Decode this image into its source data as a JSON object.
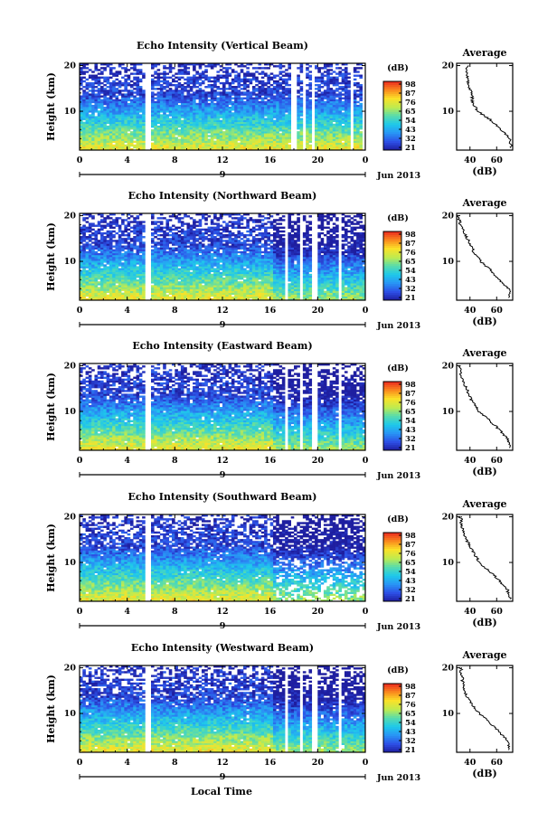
{
  "figure": {
    "xlabel": "Local Time",
    "date_label": "Jun 2013",
    "day_label": "9"
  },
  "chart_data": [
    {
      "type": "heatmap",
      "title": "Echo Intensity (Vertical Beam)",
      "ylabel": "Height (km)",
      "xlabel": "Local Time",
      "x_ticks": [
        "0",
        "4",
        "8",
        "12",
        "16",
        "20",
        "0"
      ],
      "y_ticks": [
        "10",
        "20"
      ],
      "xlim": [
        0,
        24
      ],
      "ylim": [
        1.5,
        20.5
      ],
      "colorbar": {
        "label": "(dB)",
        "ticks": [
          "98",
          "87",
          "76",
          "65",
          "54",
          "43",
          "32",
          "21"
        ],
        "range": [
          21,
          98
        ]
      },
      "gap_hours": [
        [
          5.5,
          6.1
        ],
        [
          17.8,
          18.2
        ],
        [
          18.8,
          19.1
        ],
        [
          19.5,
          19.8
        ],
        [
          20.4,
          20.6
        ],
        [
          21.4,
          21.6
        ],
        [
          22.7,
          22.9
        ],
        [
          23.7,
          23.9
        ]
      ],
      "profile": {
        "title": "Average",
        "xlabel": "(dB)",
        "x_ticks": [
          "40",
          "60"
        ],
        "y_ticks": [
          "10",
          "20"
        ],
        "heights_km": [
          2,
          4,
          6,
          8,
          10,
          12,
          14,
          16,
          18,
          20
        ],
        "values_db": [
          71,
          70,
          63,
          56,
          46,
          42,
          41,
          39,
          38,
          38
        ]
      }
    },
    {
      "type": "heatmap",
      "title": "Echo Intensity (Northward Beam)",
      "ylabel": "Height (km)",
      "xlabel": "Local Time",
      "x_ticks": [
        "0",
        "4",
        "8",
        "12",
        "16",
        "20",
        "0"
      ],
      "y_ticks": [
        "10",
        "20"
      ],
      "xlim": [
        0,
        24
      ],
      "ylim": [
        1.5,
        20.5
      ],
      "colorbar": {
        "label": "(dB)",
        "ticks": [
          "98",
          "87",
          "76",
          "65",
          "54",
          "43",
          "32",
          "21"
        ],
        "range": [
          21,
          98
        ]
      },
      "gap_hours": [
        [
          5.5,
          6.1
        ],
        [
          17.3,
          17.6
        ],
        [
          18.4,
          18.7
        ],
        [
          19.6,
          19.9
        ],
        [
          21.7,
          21.9
        ],
        [
          22.9,
          23.1
        ]
      ],
      "profile": {
        "title": "Average",
        "xlabel": "(dB)",
        "x_ticks": [
          "40",
          "60"
        ],
        "y_ticks": [
          "10",
          "20"
        ],
        "heights_km": [
          2,
          4,
          6,
          8,
          10,
          12,
          14,
          16,
          18,
          20
        ],
        "values_db": [
          70,
          69,
          62,
          56,
          48,
          43,
          40,
          36,
          33,
          31
        ]
      }
    },
    {
      "type": "heatmap",
      "title": "Echo Intensity (Eastward Beam)",
      "ylabel": "Height (km)",
      "xlabel": "Local Time",
      "x_ticks": [
        "0",
        "4",
        "8",
        "12",
        "16",
        "20",
        "0"
      ],
      "y_ticks": [
        "10",
        "20"
      ],
      "xlim": [
        0,
        24
      ],
      "ylim": [
        1.5,
        20.5
      ],
      "colorbar": {
        "label": "(dB)",
        "ticks": [
          "98",
          "87",
          "76",
          "65",
          "54",
          "43",
          "32",
          "21"
        ],
        "range": [
          21,
          98
        ]
      },
      "gap_hours": [
        [
          5.5,
          6.1
        ],
        [
          17.3,
          17.6
        ],
        [
          18.4,
          18.7
        ],
        [
          19.6,
          19.9
        ],
        [
          21.7,
          21.9
        ],
        [
          22.9,
          23.1
        ]
      ],
      "profile": {
        "title": "Average",
        "xlabel": "(dB)",
        "x_ticks": [
          "40",
          "60"
        ],
        "y_ticks": [
          "10",
          "20"
        ],
        "heights_km": [
          2,
          4,
          6,
          8,
          10,
          12,
          14,
          16,
          18,
          20
        ],
        "values_db": [
          70,
          68,
          62,
          55,
          47,
          42,
          39,
          36,
          33,
          32
        ]
      }
    },
    {
      "type": "heatmap",
      "title": "Echo Intensity (Southward Beam)",
      "ylabel": "Height (km)",
      "xlabel": "Local Time",
      "x_ticks": [
        "0",
        "4",
        "8",
        "12",
        "16",
        "20",
        "0"
      ],
      "y_ticks": [
        "10",
        "20"
      ],
      "xlim": [
        0,
        24
      ],
      "ylim": [
        1.5,
        20.5
      ],
      "colorbar": {
        "label": "(dB)",
        "ticks": [
          "98",
          "87",
          "76",
          "65",
          "54",
          "43",
          "32",
          "21"
        ],
        "range": [
          21,
          98
        ]
      },
      "gap_hours": [
        [
          5.5,
          6.1
        ]
      ],
      "profile": {
        "title": "Average",
        "xlabel": "(dB)",
        "x_ticks": [
          "40",
          "60"
        ],
        "y_ticks": [
          "10",
          "20"
        ],
        "heights_km": [
          2,
          4,
          6,
          8,
          10,
          12,
          14,
          16,
          18,
          20
        ],
        "values_db": [
          70,
          68,
          62,
          55,
          47,
          43,
          39,
          36,
          34,
          33
        ]
      }
    },
    {
      "type": "heatmap",
      "title": "Echo Intensity (Westward Beam)",
      "ylabel": "Height (km)",
      "xlabel": "Local Time",
      "x_ticks": [
        "0",
        "4",
        "8",
        "12",
        "16",
        "20",
        "0"
      ],
      "y_ticks": [
        "10",
        "20"
      ],
      "xlim": [
        0,
        24
      ],
      "ylim": [
        1.5,
        20.5
      ],
      "colorbar": {
        "label": "(dB)",
        "ticks": [
          "98",
          "87",
          "76",
          "65",
          "54",
          "43",
          "32",
          "21"
        ],
        "range": [
          21,
          98
        ]
      },
      "gap_hours": [
        [
          5.5,
          6.1
        ],
        [
          17.3,
          17.6
        ],
        [
          18.4,
          18.7
        ],
        [
          19.6,
          19.9
        ],
        [
          21.7,
          21.9
        ]
      ],
      "profile": {
        "title": "Average",
        "xlabel": "(dB)",
        "x_ticks": [
          "40",
          "60"
        ],
        "y_ticks": [
          "10",
          "20"
        ],
        "heights_km": [
          2,
          4,
          6,
          8,
          10,
          12,
          14,
          16,
          18,
          20
        ],
        "values_db": [
          70,
          68,
          62,
          55,
          47,
          41,
          37,
          35,
          34,
          33
        ]
      }
    }
  ]
}
